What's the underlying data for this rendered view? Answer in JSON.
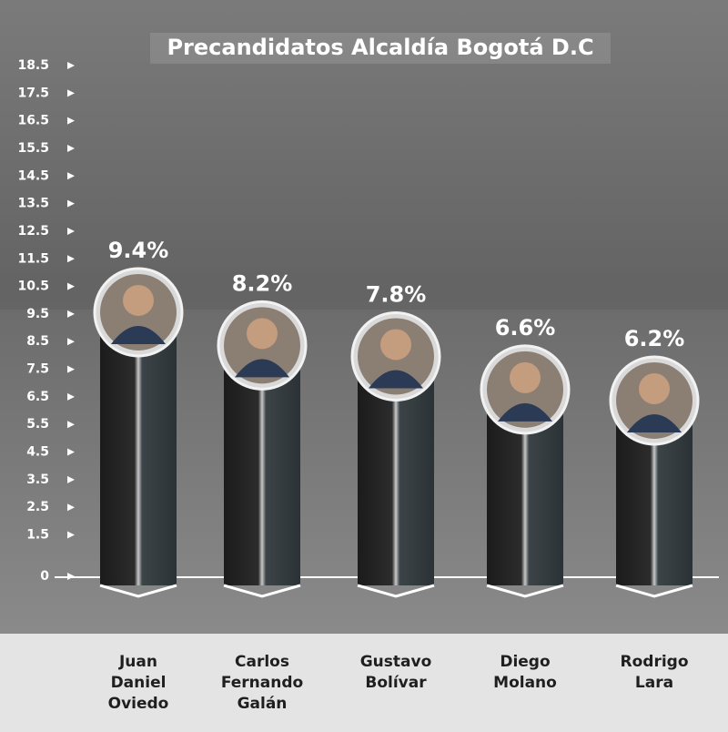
{
  "chart_data": {
    "type": "bar",
    "title": "Precandidatos Alcaldía Bogotá D.C",
    "categories": [
      "Juan Daniel Oviedo",
      "Carlos Fernando Galán",
      "Gustavo Bolívar",
      "Diego Molano",
      "Rodrigo Lara"
    ],
    "values": [
      9.4,
      8.2,
      7.8,
      6.6,
      6.2
    ],
    "value_labels": [
      "9.4%",
      "8.2%",
      "7.8%",
      "6.6%",
      "6.2%"
    ],
    "color": "#2a2d30",
    "ylim": [
      0,
      18.5
    ],
    "yticks": [
      0,
      1.5,
      2.5,
      3.5,
      4.5,
      5.5,
      6.5,
      7.5,
      8.5,
      9.5,
      10.5,
      11.5,
      12.5,
      13.5,
      14.5,
      15.5,
      16.5,
      17.5,
      18.5
    ]
  }
}
